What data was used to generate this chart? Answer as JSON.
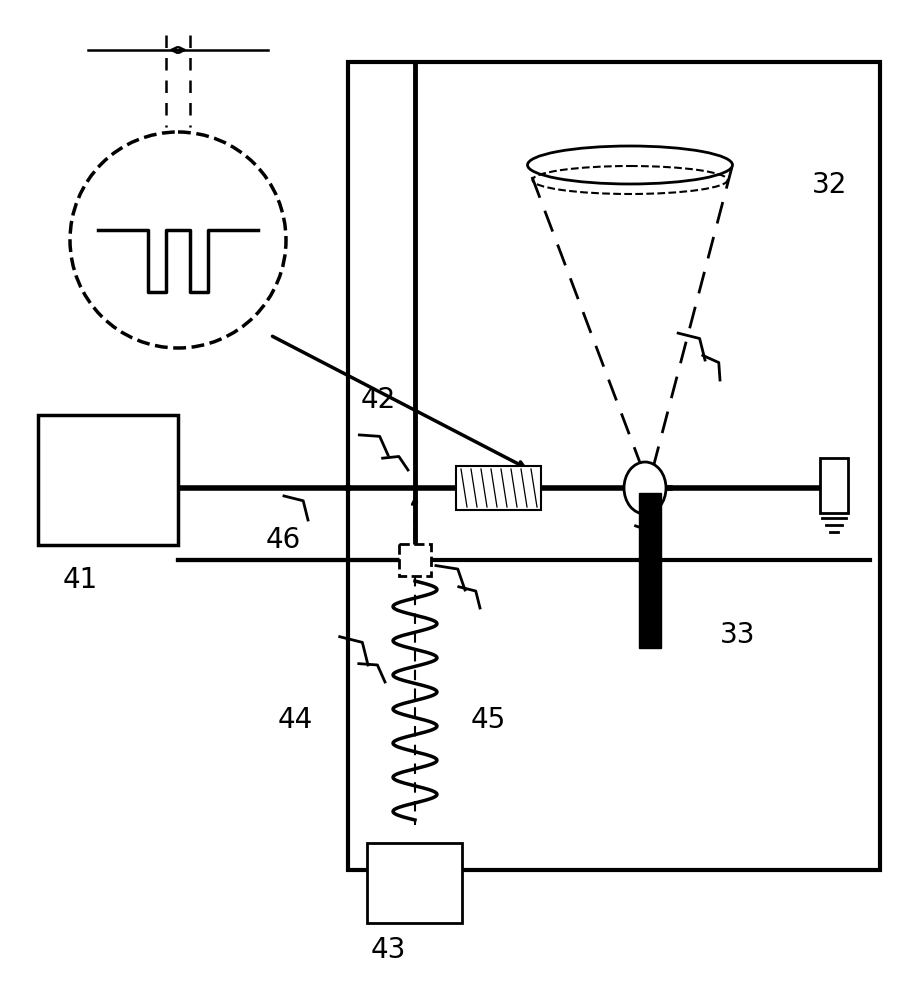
{
  "bg_color": "#ffffff",
  "line_color": "#000000",
  "label_fontsize": 20
}
